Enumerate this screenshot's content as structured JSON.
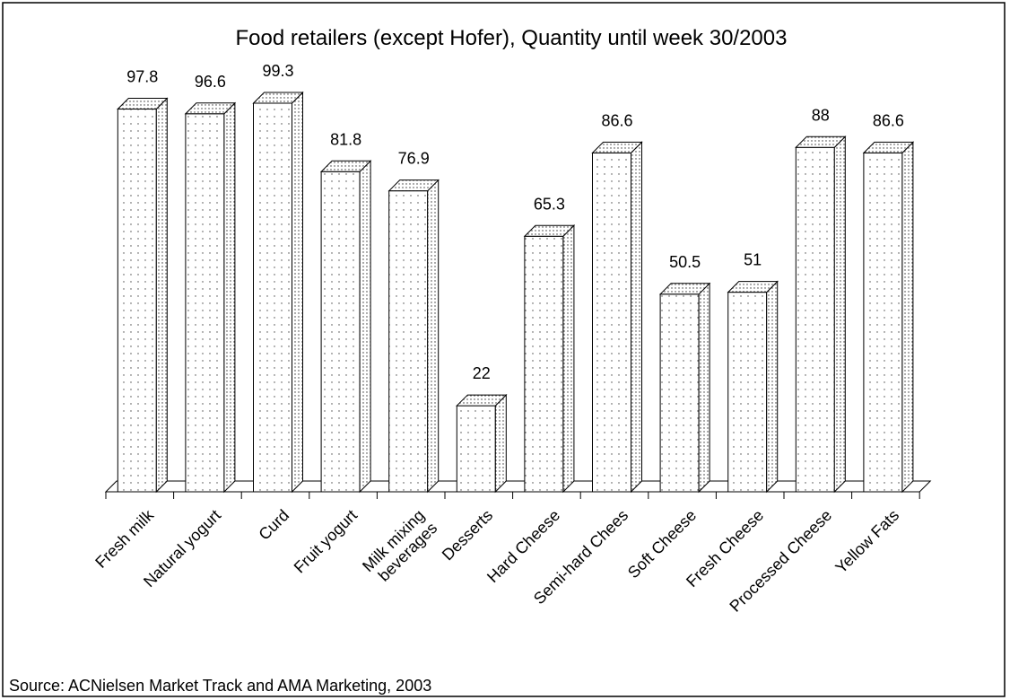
{
  "chart_data": {
    "type": "bar3d",
    "title": "Food retailers (except Hofer), Quantity until week 30/2003",
    "categories": [
      "Fresh milk",
      "Natural yogurt",
      "Curd",
      "Fruit yogurt",
      "Milk mixing\nbeverages",
      "Desserts",
      "Hard Cheese",
      "Semi-hard Chees",
      "Soft Cheese",
      "Fresh Cheese",
      "Processed Cheese",
      "Yellow Fats"
    ],
    "values": [
      97.8,
      96.6,
      99.3,
      81.8,
      76.9,
      22,
      65.3,
      86.6,
      50.5,
      51,
      88,
      86.6
    ],
    "color": "#ffffff",
    "source": "Source: ACNielsen Market Track and AMA Marketing, 2003"
  }
}
